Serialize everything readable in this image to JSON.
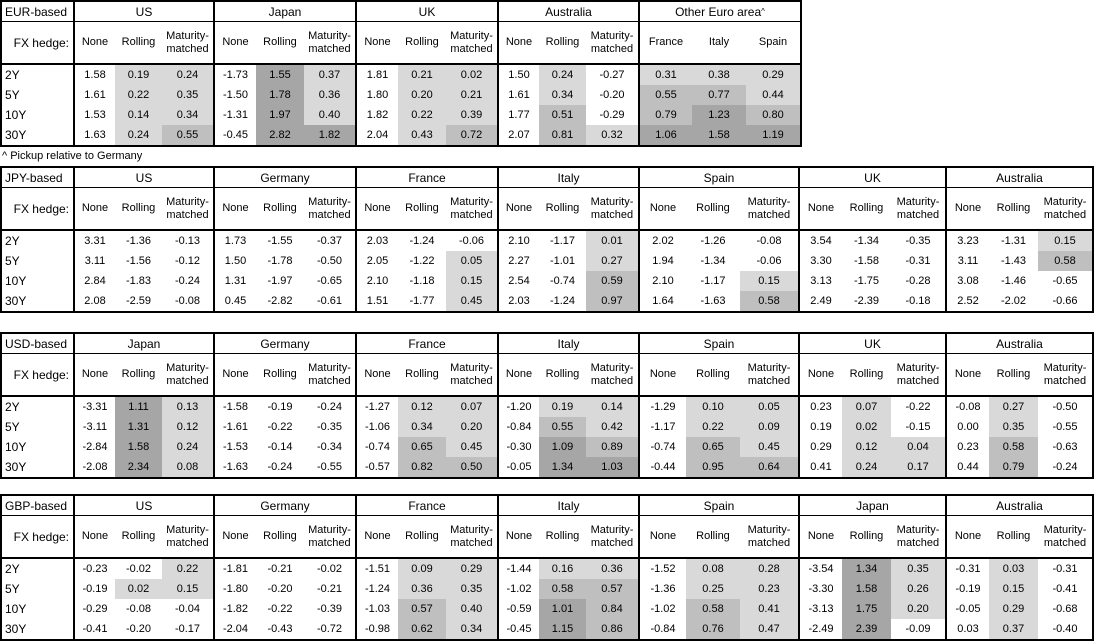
{
  "colors": {
    "shade_low": "#d9d9d9",
    "shade_mid": "#bfbfbf",
    "shade_high": "#a6a6a6",
    "border": "#000000",
    "background": "#ffffff"
  },
  "labels": {
    "fx_hedge": "FX hedge:",
    "tenors": [
      "2Y",
      "5Y",
      "10Y",
      "30Y"
    ],
    "hedge_types": [
      "None",
      "Rolling",
      "Maturity-matched"
    ],
    "footnote": "^ Pickup relative to Germany"
  },
  "tables": [
    {
      "base": "EUR-based",
      "groups": [
        {
          "name": "US",
          "rows": [
            [
              "1.58",
              "0.19",
              "0.24"
            ],
            [
              "1.61",
              "0.22",
              "0.35"
            ],
            [
              "1.53",
              "0.14",
              "0.34"
            ],
            [
              "1.63",
              "0.24",
              "0.55"
            ]
          ]
        },
        {
          "name": "Japan",
          "rows": [
            [
              "-1.73",
              "1.55",
              "0.37"
            ],
            [
              "-1.50",
              "1.78",
              "0.36"
            ],
            [
              "-1.31",
              "1.97",
              "0.40"
            ],
            [
              "-0.45",
              "2.82",
              "1.82"
            ]
          ]
        },
        {
          "name": "UK",
          "rows": [
            [
              "1.81",
              "0.21",
              "0.02"
            ],
            [
              "1.80",
              "0.20",
              "0.21"
            ],
            [
              "1.82",
              "0.22",
              "0.39"
            ],
            [
              "2.04",
              "0.43",
              "0.72"
            ]
          ]
        },
        {
          "name": "Australia",
          "rows": [
            [
              "1.50",
              "0.24",
              "-0.27"
            ],
            [
              "1.61",
              "0.34",
              "-0.20"
            ],
            [
              "1.77",
              "0.51",
              "-0.29"
            ],
            [
              "2.07",
              "0.81",
              "0.32"
            ]
          ]
        },
        {
          "name": "Other Euro area^",
          "cols": [
            "France",
            "Italy",
            "Spain"
          ],
          "rows": [
            [
              "0.31",
              "0.38",
              "0.29"
            ],
            [
              "0.55",
              "0.77",
              "0.44"
            ],
            [
              "0.79",
              "1.23",
              "0.80"
            ],
            [
              "1.06",
              "1.58",
              "1.19"
            ]
          ]
        }
      ],
      "footnote_after": true
    },
    {
      "base": "JPY-based",
      "groups": [
        {
          "name": "US",
          "rows": [
            [
              "3.31",
              "-1.36",
              "-0.13"
            ],
            [
              "3.11",
              "-1.56",
              "-0.12"
            ],
            [
              "2.84",
              "-1.83",
              "-0.24"
            ],
            [
              "2.08",
              "-2.59",
              "-0.08"
            ]
          ]
        },
        {
          "name": "Germany",
          "rows": [
            [
              "1.73",
              "-1.55",
              "-0.37"
            ],
            [
              "1.50",
              "-1.78",
              "-0.50"
            ],
            [
              "1.31",
              "-1.97",
              "-0.65"
            ],
            [
              "0.45",
              "-2.82",
              "-0.61"
            ]
          ]
        },
        {
          "name": "France",
          "rows": [
            [
              "2.03",
              "-1.24",
              "-0.06"
            ],
            [
              "2.05",
              "-1.22",
              "0.05"
            ],
            [
              "2.10",
              "-1.18",
              "0.15"
            ],
            [
              "1.51",
              "-1.77",
              "0.45"
            ]
          ]
        },
        {
          "name": "Italy",
          "rows": [
            [
              "2.10",
              "-1.17",
              "0.01"
            ],
            [
              "2.27",
              "-1.01",
              "0.27"
            ],
            [
              "2.54",
              "-0.74",
              "0.59"
            ],
            [
              "2.03",
              "-1.24",
              "0.97"
            ]
          ]
        },
        {
          "name": "Spain",
          "rows": [
            [
              "2.02",
              "-1.26",
              "-0.08"
            ],
            [
              "1.94",
              "-1.34",
              "-0.06"
            ],
            [
              "2.10",
              "-1.17",
              "0.15"
            ],
            [
              "1.64",
              "-1.63",
              "0.58"
            ]
          ]
        },
        {
          "name": "UK",
          "rows": [
            [
              "3.54",
              "-1.34",
              "-0.35"
            ],
            [
              "3.30",
              "-1.58",
              "-0.31"
            ],
            [
              "3.13",
              "-1.75",
              "-0.28"
            ],
            [
              "2.49",
              "-2.39",
              "-0.18"
            ]
          ]
        },
        {
          "name": "Australia",
          "rows": [
            [
              "3.23",
              "-1.31",
              "0.15"
            ],
            [
              "3.11",
              "-1.43",
              "0.58"
            ],
            [
              "3.08",
              "-1.46",
              "-0.65"
            ],
            [
              "2.52",
              "-2.02",
              "-0.66"
            ]
          ]
        }
      ]
    },
    {
      "base": "USD-based",
      "groups": [
        {
          "name": "Japan",
          "rows": [
            [
              "-3.31",
              "1.11",
              "0.13"
            ],
            [
              "-3.11",
              "1.31",
              "0.12"
            ],
            [
              "-2.84",
              "1.58",
              "0.24"
            ],
            [
              "-2.08",
              "2.34",
              "0.08"
            ]
          ]
        },
        {
          "name": "Germany",
          "rows": [
            [
              "-1.58",
              "-0.19",
              "-0.24"
            ],
            [
              "-1.61",
              "-0.22",
              "-0.35"
            ],
            [
              "-1.53",
              "-0.14",
              "-0.34"
            ],
            [
              "-1.63",
              "-0.24",
              "-0.55"
            ]
          ]
        },
        {
          "name": "France",
          "rows": [
            [
              "-1.27",
              "0.12",
              "0.07"
            ],
            [
              "-1.06",
              "0.34",
              "0.20"
            ],
            [
              "-0.74",
              "0.65",
              "0.45"
            ],
            [
              "-0.57",
              "0.82",
              "0.50"
            ]
          ]
        },
        {
          "name": "Italy",
          "rows": [
            [
              "-1.20",
              "0.19",
              "0.14"
            ],
            [
              "-0.84",
              "0.55",
              "0.42"
            ],
            [
              "-0.30",
              "1.09",
              "0.89"
            ],
            [
              "-0.05",
              "1.34",
              "1.03"
            ]
          ]
        },
        {
          "name": "Spain",
          "rows": [
            [
              "-1.29",
              "0.10",
              "0.05"
            ],
            [
              "-1.17",
              "0.22",
              "0.09"
            ],
            [
              "-0.74",
              "0.65",
              "0.45"
            ],
            [
              "-0.44",
              "0.95",
              "0.64"
            ]
          ]
        },
        {
          "name": "UK",
          "rows": [
            [
              "0.23",
              "0.07",
              "-0.22"
            ],
            [
              "0.19",
              "0.02",
              "-0.15"
            ],
            [
              "0.29",
              "0.12",
              "0.04"
            ],
            [
              "0.41",
              "0.24",
              "0.17"
            ]
          ]
        },
        {
          "name": "Australia",
          "rows": [
            [
              "-0.08",
              "0.27",
              "-0.50"
            ],
            [
              "0.00",
              "0.35",
              "-0.55"
            ],
            [
              "0.23",
              "0.58",
              "-0.63"
            ],
            [
              "0.44",
              "0.79",
              "-0.24"
            ]
          ]
        }
      ]
    },
    {
      "base": "GBP-based",
      "groups": [
        {
          "name": "US",
          "rows": [
            [
              "-0.23",
              "-0.02",
              "0.22"
            ],
            [
              "-0.19",
              "0.02",
              "0.15"
            ],
            [
              "-0.29",
              "-0.08",
              "-0.04"
            ],
            [
              "-0.41",
              "-0.20",
              "-0.17"
            ]
          ]
        },
        {
          "name": "Germany",
          "rows": [
            [
              "-1.81",
              "-0.21",
              "-0.02"
            ],
            [
              "-1.80",
              "-0.20",
              "-0.21"
            ],
            [
              "-1.82",
              "-0.22",
              "-0.39"
            ],
            [
              "-2.04",
              "-0.43",
              "-0.72"
            ]
          ]
        },
        {
          "name": "France",
          "rows": [
            [
              "-1.51",
              "0.09",
              "0.29"
            ],
            [
              "-1.24",
              "0.36",
              "0.35"
            ],
            [
              "-1.03",
              "0.57",
              "0.40"
            ],
            [
              "-0.98",
              "0.62",
              "0.34"
            ]
          ]
        },
        {
          "name": "Italy",
          "rows": [
            [
              "-1.44",
              "0.16",
              "0.36"
            ],
            [
              "-1.02",
              "0.58",
              "0.57"
            ],
            [
              "-0.59",
              "1.01",
              "0.84"
            ],
            [
              "-0.45",
              "1.15",
              "0.86"
            ]
          ]
        },
        {
          "name": "Spain",
          "rows": [
            [
              "-1.52",
              "0.08",
              "0.28"
            ],
            [
              "-1.36",
              "0.25",
              "0.23"
            ],
            [
              "-1.02",
              "0.58",
              "0.41"
            ],
            [
              "-0.84",
              "0.76",
              "0.47"
            ]
          ]
        },
        {
          "name": "Japan",
          "rows": [
            [
              "-3.54",
              "1.34",
              "0.35"
            ],
            [
              "-3.30",
              "1.58",
              "0.26"
            ],
            [
              "-3.13",
              "1.75",
              "0.20"
            ],
            [
              "-2.49",
              "2.39",
              "-0.09"
            ]
          ]
        },
        {
          "name": "Australia",
          "rows": [
            [
              "-0.31",
              "0.03",
              "-0.31"
            ],
            [
              "-0.19",
              "0.15",
              "-0.41"
            ],
            [
              "-0.05",
              "0.29",
              "-0.68"
            ],
            [
              "0.03",
              "0.37",
              "-0.40"
            ]
          ]
        }
      ]
    }
  ]
}
